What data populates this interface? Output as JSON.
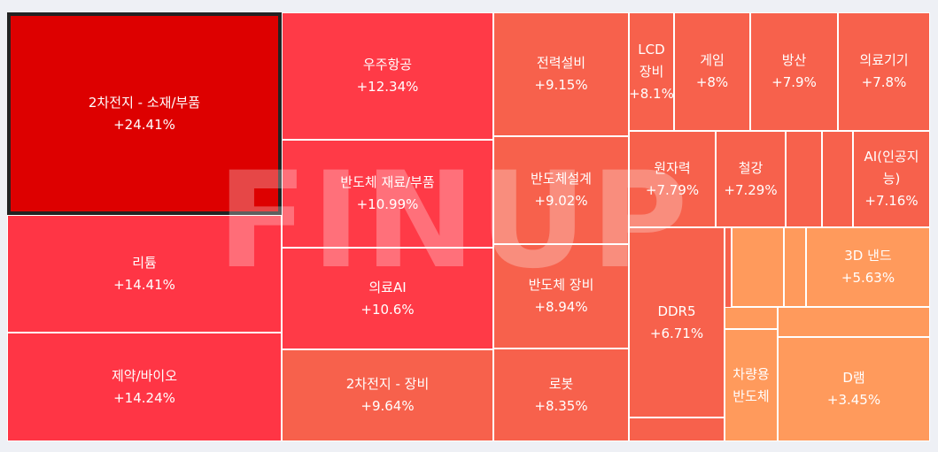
{
  "chart_data": {
    "type": "treemap",
    "watermark": "FINUP",
    "selected": "2차전지 - 소재/부품",
    "cells": [
      {
        "name": "2차전지 - 소재/부품",
        "change": "+24.41%",
        "color": "#dd0000"
      },
      {
        "name": "리튬",
        "change": "+14.41%",
        "color": "#ff3545"
      },
      {
        "name": "제약/바이오",
        "change": "+14.24%",
        "color": "#ff3545"
      },
      {
        "name": "우주항공",
        "change": "+12.34%",
        "color": "#ff3a47"
      },
      {
        "name": "반도체 재료/부품",
        "change": "+10.99%",
        "color": "#ff3a47"
      },
      {
        "name": "의료AI",
        "change": "+10.6%",
        "color": "#ff3a47"
      },
      {
        "name": "2차전지 - 장비",
        "change": "+9.64%",
        "color": "#f7614c"
      },
      {
        "name": "전력설비",
        "change": "+9.15%",
        "color": "#f7614c"
      },
      {
        "name": "반도체설계",
        "change": "+9.02%",
        "color": "#f7614c"
      },
      {
        "name": "반도체 장비",
        "change": "+8.94%",
        "color": "#f7614c"
      },
      {
        "name": "로봇",
        "change": "+8.35%",
        "color": "#f7614c"
      },
      {
        "name": "LCD 장비",
        "change": "+8.1%",
        "color": "#f7614c"
      },
      {
        "name": "게임",
        "change": "+8%",
        "color": "#f7614c"
      },
      {
        "name": "방산",
        "change": "+7.9%",
        "color": "#f7614c"
      },
      {
        "name": "의료기기",
        "change": "+7.8%",
        "color": "#f7614c"
      },
      {
        "name": "원자력",
        "change": "+7.79%",
        "color": "#f7614c"
      },
      {
        "name": "철강",
        "change": "+7.29%",
        "color": "#f7614c"
      },
      {
        "name": "AI(인공지능)",
        "change": "+7.16%",
        "color": "#f7614c"
      },
      {
        "name": "DDR5",
        "change": "+6.71%",
        "color": "#f7614c"
      },
      {
        "name": "3D 낸드",
        "change": "+5.63%",
        "color": "#ff9a5c"
      },
      {
        "name": "차량용 반도체",
        "change": "",
        "color": "#ff9a5c"
      },
      {
        "name": "D램",
        "change": "+3.45%",
        "color": "#ff9a5c"
      },
      {
        "name": "",
        "change": "",
        "color": "#f7614c"
      },
      {
        "name": "",
        "change": "",
        "color": "#f7614c"
      },
      {
        "name": "",
        "change": "",
        "color": "#f7614c"
      },
      {
        "name": "",
        "change": "",
        "color": "#f7614c"
      },
      {
        "name": "",
        "change": "",
        "color": "#ff9a5c"
      },
      {
        "name": "",
        "change": "",
        "color": "#ff9a5c"
      },
      {
        "name": "",
        "change": "",
        "color": "#ff9a5c"
      },
      {
        "name": "",
        "change": "",
        "color": "#ff9a5c"
      },
      {
        "name": "",
        "change": "",
        "color": "#ff9a5c"
      }
    ]
  }
}
